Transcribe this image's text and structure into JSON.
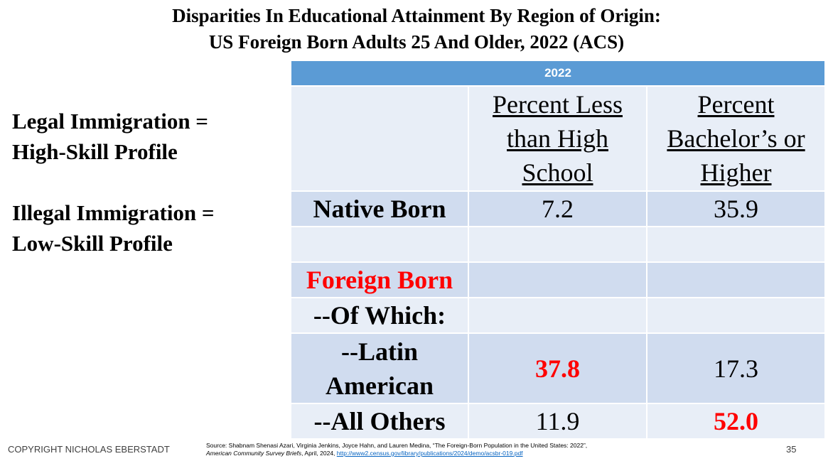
{
  "title": {
    "line1": "Disparities In Educational Attainment By Region of Origin:",
    "line2": "US Foreign Born Adults 25 And Older, 2022 (ACS)"
  },
  "side": {
    "legal_line1": "Legal Immigration =",
    "legal_line2": "High-Skill Profile",
    "illegal_line1": "Illegal Immigration =",
    "illegal_line2": "Low-Skill Profile"
  },
  "table": {
    "year": "2022",
    "col1": {
      "line1": "Percent Less",
      "line2": "than High",
      "line3": "School"
    },
    "col2": {
      "line1": "Percent",
      "line2": "Bachelor’s or",
      "line3": "Higher"
    },
    "rows": [
      {
        "label": "Native Born",
        "less_hs": "7.2",
        "bach": "35.9"
      },
      {
        "label": "",
        "less_hs": "",
        "bach": ""
      },
      {
        "label": "Foreign Born",
        "less_hs": "",
        "bach": ""
      },
      {
        "label": "--Of Which:",
        "less_hs": "",
        "bach": ""
      },
      {
        "label_line1": "--Latin",
        "label_line2": "American",
        "less_hs": "37.8",
        "bach": "17.3"
      },
      {
        "label": "--All Others",
        "less_hs": "11.9",
        "bach": "52.0"
      }
    ]
  },
  "footer": {
    "copyright": "COPYRIGHT NICHOLAS EBERSTADT",
    "source_line1": "Source: Shabnam Shenasi Azari, Virginia Jenkins, Joyce Hahn, and Lauren Medina, “The Foreign-Born Population in the United States: 2022”,",
    "source_journal": "American Community Survey Briefs",
    "source_rest": ", April, 2024, ",
    "source_url": "http://www2.census.gov/library/publications/2024/demo/acsbr-019.pdf",
    "page_number": "35"
  },
  "colors": {
    "header_blue": "#5b9bd5",
    "cell_dark": "#d0dcef",
    "cell_light": "#e8eef7",
    "highlight_red": "#ff0000"
  }
}
